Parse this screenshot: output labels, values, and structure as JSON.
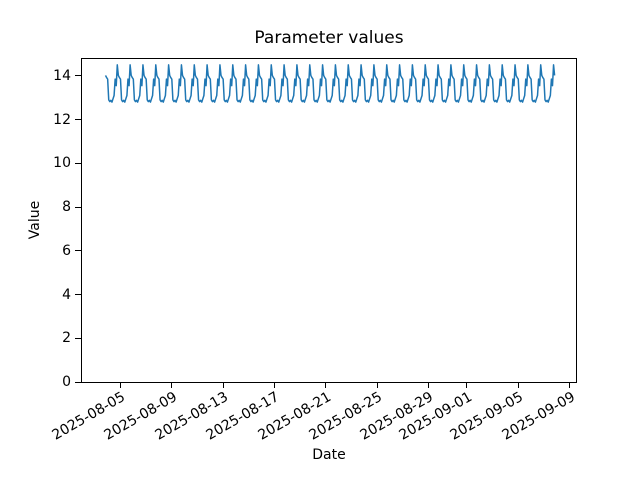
{
  "chart_data": {
    "type": "line",
    "title": "Parameter values",
    "xlabel": "Date",
    "ylabel": "Value",
    "background_color": "#ffffff",
    "line_color": "#1f77b4",
    "line_width": 1.5,
    "grid": false,
    "legend": null,
    "ylim": [
      0,
      14.77
    ],
    "y_ticks": [
      0,
      2,
      4,
      6,
      8,
      10,
      12,
      14
    ],
    "x_axis": {
      "reference_date": "2025-08-05",
      "xlim_days": [
        -3.0,
        35.5
      ],
      "ticks": [
        {
          "label": "2025-08-05",
          "offset_days": 0
        },
        {
          "label": "2025-08-09",
          "offset_days": 4
        },
        {
          "label": "2025-08-13",
          "offset_days": 8
        },
        {
          "label": "2025-08-17",
          "offset_days": 12
        },
        {
          "label": "2025-08-21",
          "offset_days": 16
        },
        {
          "label": "2025-08-25",
          "offset_days": 20
        },
        {
          "label": "2025-08-29",
          "offset_days": 24
        },
        {
          "label": "2025-09-01",
          "offset_days": 27
        },
        {
          "label": "2025-09-05",
          "offset_days": 31
        },
        {
          "label": "2025-09-09",
          "offset_days": 35
        }
      ]
    },
    "series": [
      {
        "name": "parameter-values",
        "color": "#1f77b4",
        "visible_value_range": [
          12.8,
          14.5
        ],
        "samples_per_day": 12,
        "daily_pattern": [
          13.85,
          12.9,
          12.82,
          12.88,
          12.8,
          12.95,
          13.1,
          13.85,
          13.55,
          14.5,
          14.02,
          13.92
        ],
        "lead_in": {
          "start_offset_days": -1.1667,
          "values": [
            14.02,
            13.92
          ]
        },
        "full_days": {
          "start_offset_days": -1,
          "count": 34
        },
        "tail_day": {
          "start_offset_days": 33,
          "end_sample_index": 10
        }
      }
    ]
  }
}
